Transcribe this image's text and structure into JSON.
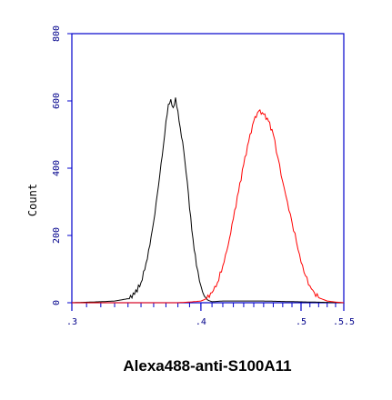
{
  "chart_data": {
    "type": "line",
    "xlabel": "Alexa488-anti-S100A11",
    "ylabel": "Count",
    "x_scale": "log",
    "xlim": [
      3,
      5.5
    ],
    "ylim": [
      0,
      800
    ],
    "x_tick_labels": [
      ".3",
      ".4",
      ".5",
      ".5.5"
    ],
    "x_ticks": [
      3,
      4,
      5,
      5.5
    ],
    "y_ticks": [
      0,
      200,
      400,
      600,
      800
    ],
    "y_tick_labels": [
      "0",
      "200",
      "400",
      "600",
      "800"
    ],
    "grid": false,
    "series": [
      {
        "color": "#000000",
        "x": [
          3.0,
          3.2,
          3.3,
          3.4,
          3.45,
          3.5,
          3.55,
          3.6,
          3.65,
          3.68,
          3.7,
          3.72,
          3.74,
          3.76,
          3.78,
          3.8,
          3.82,
          3.85,
          3.88,
          3.9,
          3.93,
          3.96,
          4.0,
          4.03,
          4.06,
          4.1,
          4.2,
          4.4,
          4.6,
          5.5
        ],
        "y": [
          0,
          3,
          5,
          12,
          25,
          60,
          130,
          240,
          380,
          470,
          540,
          590,
          605,
          580,
          610,
          570,
          520,
          450,
          360,
          280,
          190,
          110,
          50,
          20,
          8,
          3,
          5,
          5,
          5,
          0
        ]
      },
      {
        "color": "#ff0000",
        "x": [
          3.0,
          3.8,
          3.9,
          4.0,
          4.05,
          4.1,
          4.15,
          4.2,
          4.25,
          4.3,
          4.35,
          4.4,
          4.45,
          4.5,
          4.55,
          4.6,
          4.65,
          4.7,
          4.75,
          4.8,
          4.85,
          4.9,
          4.95,
          5.0,
          5.05,
          5.1,
          5.15,
          5.2,
          5.25,
          5.3,
          5.4,
          5.5
        ],
        "y": [
          0,
          0,
          2,
          5,
          12,
          30,
          60,
          110,
          170,
          250,
          330,
          410,
          480,
          540,
          570,
          560,
          540,
          500,
          430,
          360,
          300,
          240,
          180,
          120,
          80,
          50,
          30,
          15,
          10,
          5,
          2,
          0
        ]
      }
    ]
  }
}
